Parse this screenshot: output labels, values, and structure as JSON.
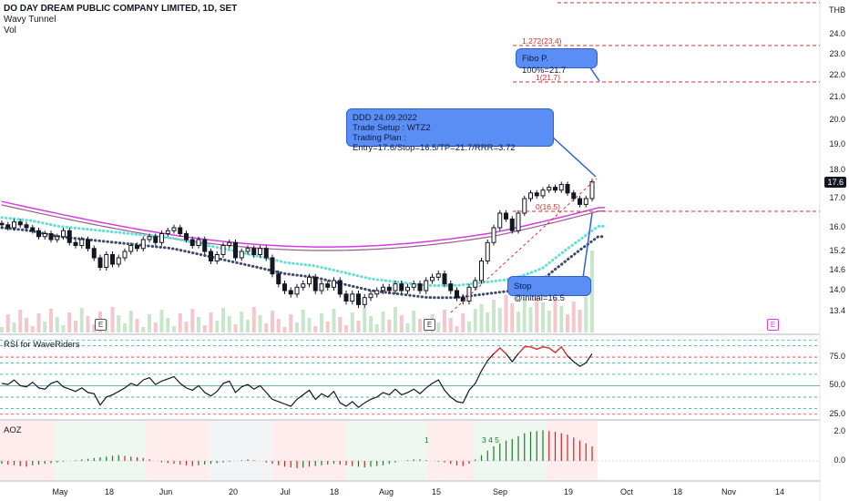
{
  "header": {
    "title": "DO DAY DREAM PUBLIC COMPANY LIMITED, 1D, SET",
    "indicator_1": "Wavy Tunnel",
    "indicator_2": "Vol"
  },
  "currency": "THB",
  "last_price_tag": "17.6",
  "annotations": {
    "plan_line_1": "DDD 24.09.2022",
    "plan_line_2": "Trade Setup : WTZ2",
    "plan_line_3": "Trading Plan : Entry=17.6/Stop=16.5/TP=21.7/RRR=3.72",
    "fibo_label": "Fibo P. 100%=21.7",
    "stop_label": "Stop @Initial=16.5",
    "fib_1272": "1.272(23.4)",
    "fib_1": "1(21.7)",
    "fib_0": "0(16.5)"
  },
  "earnings_badge": "E",
  "rsi_title": "RSI for WaveRiders",
  "aoz_title": "AOZ",
  "aoz_markers": [
    "1",
    "3 4 5"
  ],
  "colors": {
    "up": "#131722",
    "down": "#131722",
    "tunnel_outer": "#d63ce6",
    "tunnel_inner": "#9c5b8a",
    "dots_cyan": "#5fe0d6",
    "dots_navy": "#3d4a6b",
    "vol_up": "#c8e6c9",
    "vol_down": "#f5c6cb",
    "fib": "#d32f2f",
    "callout": "#5b8ef5",
    "rsi": "#131722",
    "rsi_hot": "#e53935"
  },
  "chart_data": [
    {
      "type": "candlestick",
      "title": "DO DAY DREAM PUBLIC COMPANY LIMITED, 1D, SET",
      "y_ticks": [
        13.4,
        14.0,
        14.6,
        15.2,
        16.0,
        17.0,
        18.0,
        19.0,
        20.0,
        21.0,
        22.0,
        23.0,
        24.0
      ],
      "x_ticks": [
        "May",
        "18",
        "Jun",
        "20",
        "Jul",
        "18",
        "Aug",
        "15",
        "Sep",
        "19",
        "Oct",
        "18",
        "Nov",
        "14"
      ],
      "close": [
        16.1,
        16.0,
        16.2,
        16.1,
        16.0,
        15.9,
        15.7,
        15.8,
        15.6,
        15.7,
        15.9,
        15.5,
        15.4,
        15.6,
        15.3,
        15.0,
        14.7,
        15.1,
        14.8,
        15.0,
        15.2,
        15.4,
        15.3,
        15.6,
        15.7,
        15.5,
        15.8,
        15.9,
        16.0,
        15.8,
        15.6,
        15.4,
        15.6,
        15.2,
        14.9,
        15.1,
        15.4,
        15.5,
        15.0,
        15.2,
        15.3,
        15.1,
        15.3,
        15.0,
        14.5,
        14.2,
        14.0,
        13.9,
        14.1,
        14.2,
        14.4,
        14.0,
        14.2,
        14.1,
        14.3,
        13.9,
        13.7,
        13.9,
        13.6,
        13.8,
        13.9,
        14.0,
        14.1,
        14.0,
        14.2,
        14.0,
        14.1,
        14.2,
        14.0,
        14.3,
        14.4,
        14.5,
        14.2,
        14.0,
        13.8,
        13.7,
        14.1,
        14.3,
        14.9,
        15.5,
        16.0,
        16.5,
        16.3,
        15.9,
        16.5,
        17.0,
        17.2,
        17.1,
        17.3,
        17.4,
        17.3,
        17.5,
        17.2,
        17.0,
        16.8,
        17.0,
        17.6
      ],
      "volume_note": "volume bars shown in price pane",
      "tunnel_levels": [
        16.9,
        16.2,
        15.6
      ]
    },
    {
      "type": "line",
      "title": "RSI for WaveRiders",
      "y_ticks": [
        25.0,
        50.0,
        75.0
      ],
      "ylim": [
        20,
        95
      ],
      "values": [
        52,
        51,
        55,
        50,
        49,
        53,
        48,
        47,
        52,
        54,
        49,
        47,
        45,
        48,
        44,
        43,
        33,
        40,
        42,
        45,
        48,
        52,
        50,
        55,
        57,
        51,
        54,
        56,
        58,
        52,
        48,
        46,
        50,
        44,
        41,
        45,
        52,
        54,
        44,
        49,
        51,
        47,
        50,
        44,
        38,
        36,
        34,
        32,
        38,
        42,
        46,
        38,
        43,
        40,
        45,
        35,
        32,
        36,
        31,
        35,
        38,
        40,
        44,
        42,
        47,
        42,
        44,
        47,
        43,
        48,
        52,
        55,
        46,
        40,
        36,
        35,
        46,
        52,
        63,
        72,
        78,
        83,
        78,
        71,
        78,
        84,
        84,
        82,
        84,
        83,
        79,
        84,
        76,
        71,
        67,
        70,
        78
      ]
    },
    {
      "type": "bar",
      "title": "AOZ",
      "y_ticks": [
        0.0,
        2.0
      ],
      "values": [
        -0.2,
        -0.25,
        -0.3,
        -0.35,
        -0.4,
        -0.3,
        -0.25,
        -0.2,
        -0.15,
        -0.1,
        -0.05,
        0.0,
        0.05,
        0.1,
        0.15,
        0.2,
        0.25,
        0.3,
        0.35,
        0.4,
        0.35,
        0.3,
        0.25,
        0.2,
        0.1,
        0.0,
        -0.1,
        -0.15,
        -0.2,
        -0.25,
        -0.3,
        -0.35,
        -0.3,
        -0.25,
        -0.2,
        -0.15,
        -0.1,
        -0.05,
        0.0,
        0.05,
        0.1,
        0.05,
        0.0,
        -0.1,
        -0.2,
        -0.3,
        -0.4,
        -0.45,
        -0.5,
        -0.45,
        -0.4,
        -0.35,
        -0.3,
        -0.25,
        -0.2,
        -0.25,
        -0.3,
        -0.35,
        -0.4,
        -0.45,
        -0.4,
        -0.35,
        -0.3,
        -0.2,
        -0.1,
        0.0,
        0.05,
        0.1,
        0.1,
        0.05,
        0.0,
        -0.05,
        -0.1,
        -0.2,
        -0.3,
        -0.35,
        -0.2,
        0.1,
        0.4,
        0.7,
        1.0,
        1.2,
        1.4,
        1.5,
        1.7,
        1.9,
        2.0,
        2.05,
        2.1,
        2.05,
        2.0,
        1.9,
        1.8,
        1.6,
        1.4,
        1.2,
        1.0
      ]
    }
  ]
}
